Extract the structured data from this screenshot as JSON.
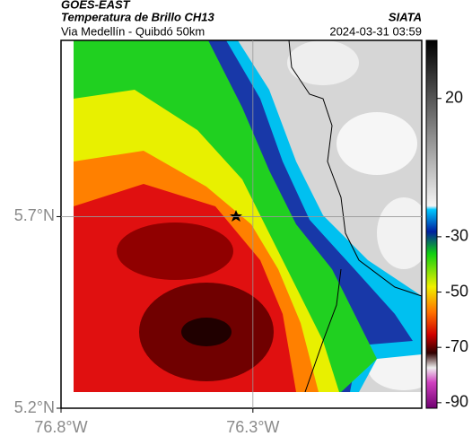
{
  "header": {
    "source": "GOES-EAST",
    "product": "Temperatura de Brillo CH13",
    "route": "Via Medellín - Quibdó 50km",
    "agency": "SIATA",
    "timestamp": "2024-03-31 03:59"
  },
  "map": {
    "xlim": [
      -76.8,
      -75.86
    ],
    "ylim": [
      5.2,
      6.16
    ],
    "xticks": [
      {
        "value": -76.8,
        "label": "76.8°W"
      },
      {
        "value": -76.3,
        "label": "76.3°W"
      }
    ],
    "yticks": [
      {
        "value": 5.7,
        "label": "5.7°N"
      },
      {
        "value": 5.2,
        "label": "5.2°N"
      }
    ],
    "grid": true
  },
  "colorbar": {
    "lim": [
      -92,
      41
    ],
    "ticks": [
      20,
      -30,
      -50,
      -70,
      -90
    ]
  }
}
